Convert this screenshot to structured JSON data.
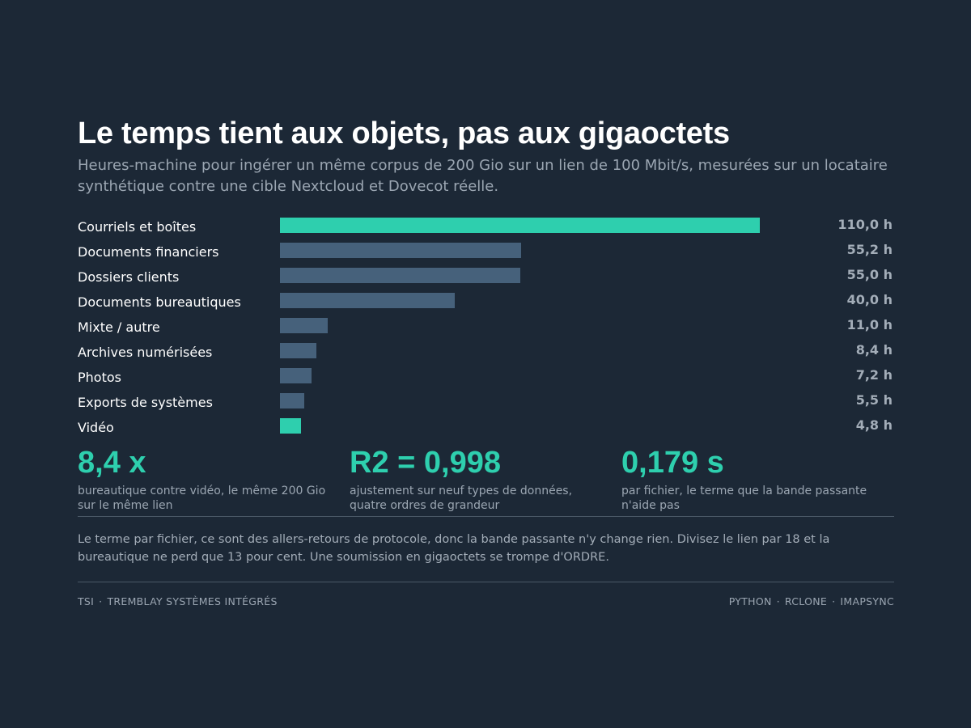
{
  "header": {
    "title": "Le temps tient aux objets, pas aux gigaoctets",
    "subtitle": "Heures-machine pour ingérer un même corpus de 200 Gio sur un lien de 100 Mbit/s, mesurées sur un locataire synthétique contre une cible Nextcloud et Dovecot réelle."
  },
  "chart_data": {
    "type": "bar",
    "orientation": "horizontal",
    "title": "Le temps tient aux objets, pas aux gigaoctets",
    "categories": [
      "Courriels et boîtes",
      "Documents financiers",
      "Dossiers clients",
      "Documents bureautiques",
      "Mixte / autre",
      "Archives numérisées",
      "Photos",
      "Exports de systèmes",
      "Vidéo"
    ],
    "values": [
      110.0,
      55.2,
      55.0,
      40.0,
      11.0,
      8.4,
      7.2,
      5.5,
      4.8
    ],
    "value_labels": [
      "110,0 h",
      "55,2 h",
      "55,0 h",
      "40,0 h",
      "11,0 h",
      "8,4 h",
      "7,2 h",
      "5,5 h",
      "4,8 h"
    ],
    "xlim": [
      0,
      110
    ],
    "grid": false,
    "colors": {
      "highlight": "#2ecfae",
      "default": "#46617b"
    },
    "highlighted": [
      "Courriels et boîtes",
      "Vidéo"
    ]
  },
  "stats": [
    {
      "value": "8,4 x",
      "desc": "bureautique contre vidéo, le même 200 Gio sur le même lien"
    },
    {
      "value": "R2 = 0,998",
      "desc": "ajustement sur neuf types de données, quatre ordres de grandeur"
    },
    {
      "value": "0,179 s",
      "desc": "par fichier, le terme que la bande passante n'aide pas"
    }
  ],
  "note": "Le terme par fichier, ce sont des allers-retours de protocole, donc la bande passante n'y change rien. Divisez le lien par 18 et la bureautique ne perd que 13 pour cent. Une soumission en gigaoctets se trompe d'ORDRE.",
  "footer": {
    "left": [
      "TSI",
      "TREMBLAY SYSTÈMES INTÉGRÉS"
    ],
    "right": [
      "PYTHON",
      "RCLONE",
      "IMAPSYNC"
    ]
  }
}
